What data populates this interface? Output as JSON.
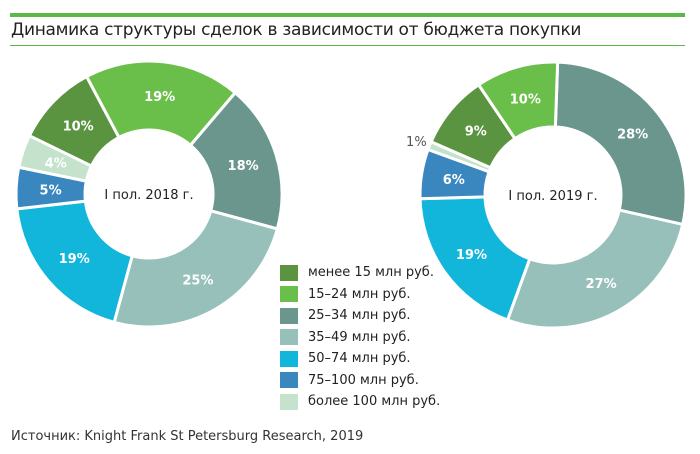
{
  "title": "Динамика структуры сделок в зависимости от бюджета покупки",
  "source": "Источник: Knight Frank St Petersburg Research, 2019",
  "colors": {
    "accent": "#5cb848"
  },
  "chart_data": [
    {
      "type": "pie",
      "title": "I пол. 2018 г.",
      "categories": [
        "15–24 млн руб.",
        "25–34 млн руб.",
        "35–49 млн руб.",
        "50–74 млн руб.",
        "75–100 млн руб.",
        "более 100 млн руб.",
        "менее 15 млн руб."
      ],
      "values": [
        19,
        18,
        25,
        19,
        5,
        4,
        10
      ],
      "labels": [
        "19%",
        "18%",
        "25%",
        "19%",
        "5%",
        "4%",
        "10%"
      ],
      "start_angle_deg": -28
    },
    {
      "type": "pie",
      "title": "I пол. 2019 г.",
      "categories": [
        "25–34 млн руб.",
        "35–49 млн руб.",
        "50–74 млн руб.",
        "75–100 млн руб.",
        "более 100 млн руб.",
        "менее 15 млн руб.",
        "15–24 млн руб."
      ],
      "values": [
        28,
        27,
        19,
        6,
        1,
        9,
        10
      ],
      "labels": [
        "28%",
        "27%",
        "19%",
        "6%",
        "1%",
        "9%",
        "10%"
      ],
      "start_angle_deg": 2
    }
  ],
  "legend": [
    {
      "label": "менее 15 млн руб.",
      "color": "#5a9440"
    },
    {
      "label": "15–24 млн руб.",
      "color": "#6abf4b"
    },
    {
      "label": "25–34 млн руб.",
      "color": "#6b968e"
    },
    {
      "label": "35–49 млн руб.",
      "color": "#97c0bb"
    },
    {
      "label": "50–74 млн руб.",
      "color": "#12b6db"
    },
    {
      "label": "75–100 млн руб.",
      "color": "#3a87bf"
    },
    {
      "label": "более 100 млн руб.",
      "color": "#c4e2cc"
    }
  ]
}
